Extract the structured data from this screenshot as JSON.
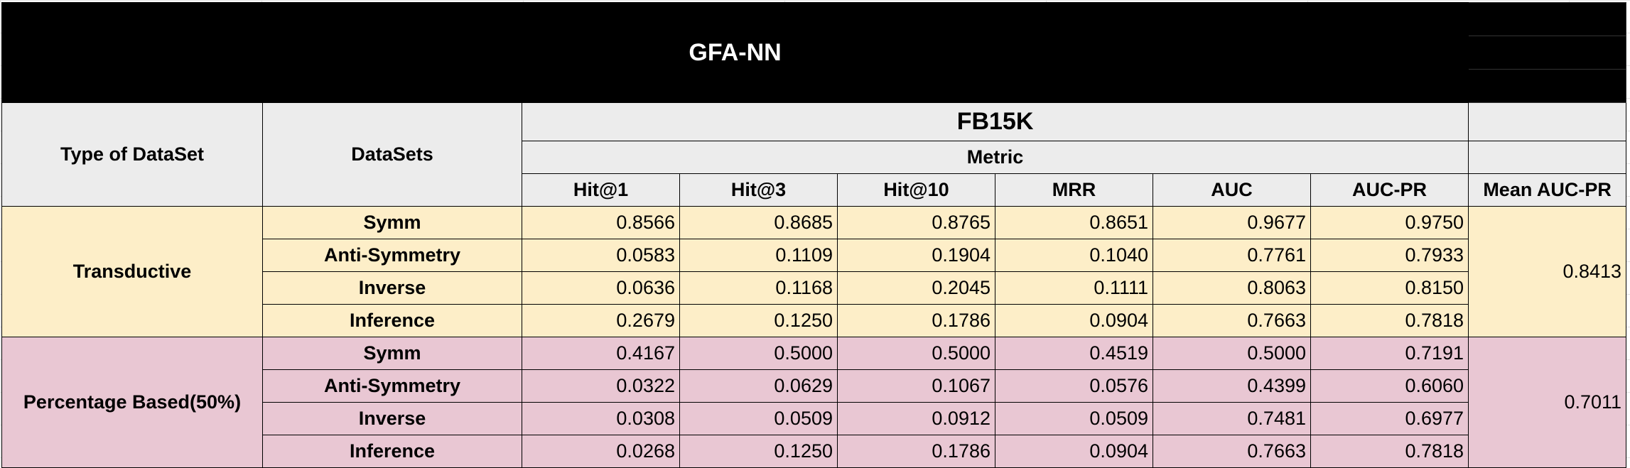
{
  "title": "GFA-NN",
  "headers": {
    "type_of_dataset": "Type of DataSet",
    "datasets": "DataSets",
    "group": "FB15K",
    "metric": "Metric",
    "columns": [
      "Hit@1",
      "Hit@3",
      "Hit@10",
      "MRR",
      "AUC",
      "AUC-PR"
    ],
    "mean": "Mean AUC-PR"
  },
  "groups": [
    {
      "type": "Transductive",
      "mean": "0.8413",
      "rows": [
        {
          "name": "Symm",
          "values": [
            "0.8566",
            "0.8685",
            "0.8765",
            "0.8651",
            "0.9677",
            "0.9750"
          ]
        },
        {
          "name": "Anti-Symmetry",
          "values": [
            "0.0583",
            "0.1109",
            "0.1904",
            "0.1040",
            "0.7761",
            "0.7933"
          ]
        },
        {
          "name": "Inverse",
          "values": [
            "0.0636",
            "0.1168",
            "0.2045",
            "0.1111",
            "0.8063",
            "0.8150"
          ]
        },
        {
          "name": "Inference",
          "values": [
            "0.2679",
            "0.1250",
            "0.1786",
            "0.0904",
            "0.7663",
            "0.7818"
          ]
        }
      ]
    },
    {
      "type": "Percentage Based(50%)",
      "mean": "0.7011",
      "rows": [
        {
          "name": "Symm",
          "values": [
            "0.4167",
            "0.5000",
            "0.5000",
            "0.4519",
            "0.5000",
            "0.7191"
          ]
        },
        {
          "name": "Anti-Symmetry",
          "values": [
            "0.0322",
            "0.0629",
            "0.1067",
            "0.0576",
            "0.4399",
            "0.6060"
          ]
        },
        {
          "name": "Inverse",
          "values": [
            "0.0308",
            "0.0509",
            "0.0912",
            "0.0509",
            "0.7481",
            "0.6977"
          ]
        },
        {
          "name": "Inference",
          "values": [
            "0.0268",
            "0.1250",
            "0.1786",
            "0.0904",
            "0.7663",
            "0.7818"
          ]
        }
      ]
    }
  ],
  "colors": {
    "title_bg": "#000000",
    "header_bg": "#ececec",
    "transductive_bg": "#fdeec8",
    "percentage_bg": "#e9c7d3"
  }
}
